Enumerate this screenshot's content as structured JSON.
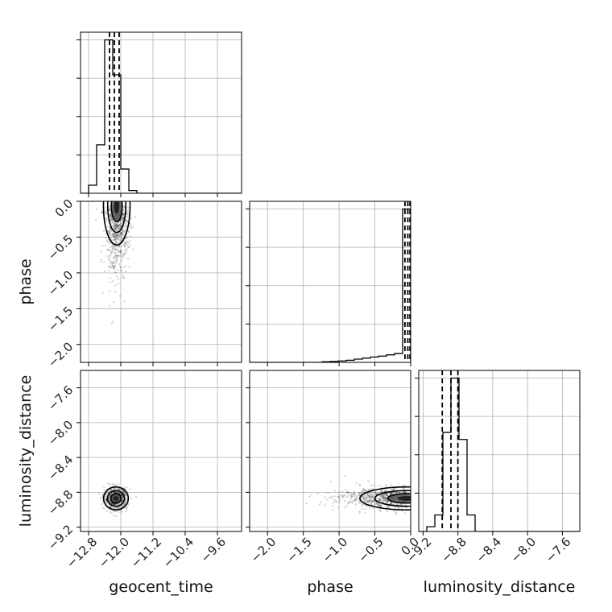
{
  "chart_data": {
    "type": "corner",
    "parameters": [
      "geocent_time",
      "phase",
      "luminosity_distance"
    ],
    "axis_labels": {
      "x": [
        "geocent_time",
        "phase",
        "luminosity_distance"
      ],
      "y": [
        "phase",
        "luminosity_distance"
      ]
    },
    "ranges": {
      "geocent_time": [
        -13.0,
        -9.0
      ],
      "phase": [
        -2.25,
        0.0
      ],
      "luminosity_distance": [
        -9.25,
        -7.4
      ]
    },
    "ticks": {
      "geocent_time": [
        -12.8,
        -12.0,
        -11.2,
        -10.4,
        -9.6
      ],
      "phase": [
        -2.0,
        -1.5,
        -1.0,
        -0.5,
        0.0
      ],
      "luminosity_distance": [
        -9.2,
        -8.8,
        -8.4,
        -8.0,
        -7.6
      ]
    },
    "tick_labels": {
      "geocent_time": [
        "−12.8",
        "−12.0",
        "−11.2",
        "−10.4",
        "−9.6"
      ],
      "phase": [
        "−2.0",
        "−1.5",
        "−1.0",
        "−0.5",
        "0.0"
      ],
      "luminosity_distance": [
        "−9.2",
        "−8.8",
        "−8.4",
        "−8.0",
        "−7.6"
      ]
    },
    "quantiles": {
      "geocent_time": [
        -12.28,
        -12.16,
        -12.04
      ],
      "phase": [
        -0.08,
        -0.04,
        -0.01
      ],
      "luminosity_distance": [
        -8.98,
        -8.88,
        -8.8
      ]
    },
    "histograms": {
      "geocent_time": {
        "edges": [
          -13.0,
          -12.8,
          -12.6,
          -12.4,
          -12.2,
          -12.0,
          -11.8,
          -11.6,
          -11.4,
          -11.2,
          -11.0,
          -10.8,
          -10.6,
          -10.4,
          -10.2,
          -10.0,
          -9.8,
          -9.6,
          -9.4,
          -9.2,
          -9.0
        ],
        "counts": [
          0,
          3,
          18,
          57,
          44,
          9,
          1,
          0,
          0,
          0,
          0,
          0,
          0,
          0,
          0,
          0,
          0,
          0,
          0,
          0
        ]
      },
      "phase": {
        "edges": [
          -2.25,
          -2.1375,
          -2.025,
          -1.9125,
          -1.8,
          -1.6875,
          -1.575,
          -1.4625,
          -1.35,
          -1.2375,
          -1.125,
          -1.0125,
          -0.9,
          -0.7875,
          -0.675,
          -0.5625,
          -0.45,
          -0.3375,
          -0.225,
          -0.1125,
          0.0
        ],
        "counts": [
          0,
          0,
          0,
          0,
          0,
          0,
          0,
          0,
          0,
          0.3,
          0.5,
          0.8,
          1.2,
          1.8,
          2.4,
          3,
          3.5,
          4.2,
          5,
          86
        ]
      },
      "luminosity_distance": {
        "edges": [
          -9.25,
          -9.1575,
          -9.065,
          -8.9725,
          -8.88,
          -8.7875,
          -8.695,
          -8.6025,
          -8.51,
          -8.4175,
          -8.325,
          -8.2325,
          -8.14,
          -8.0475,
          -7.955,
          -7.8625,
          -7.77,
          -7.6775,
          -7.585,
          -7.4925,
          -7.4
        ],
        "counts": [
          0,
          2,
          7,
          42,
          65,
          39,
          7,
          0,
          0,
          0,
          0,
          0,
          0,
          0,
          0,
          0,
          0,
          0,
          0,
          0
        ]
      }
    },
    "joint": [
      {
        "x": "geocent_time",
        "y": "phase",
        "center": [
          -12.1,
          -0.06
        ],
        "spread": [
          0.15,
          0.25
        ],
        "tail": "downward"
      },
      {
        "x": "geocent_time",
        "y": "luminosity_distance",
        "center": [
          -12.12,
          -8.87
        ],
        "spread": [
          0.14,
          0.06
        ]
      },
      {
        "x": "phase",
        "y": "luminosity_distance",
        "center": [
          -0.05,
          -8.87
        ],
        "spread": [
          0.3,
          0.06
        ],
        "tail": "leftward"
      }
    ],
    "grid": true
  }
}
